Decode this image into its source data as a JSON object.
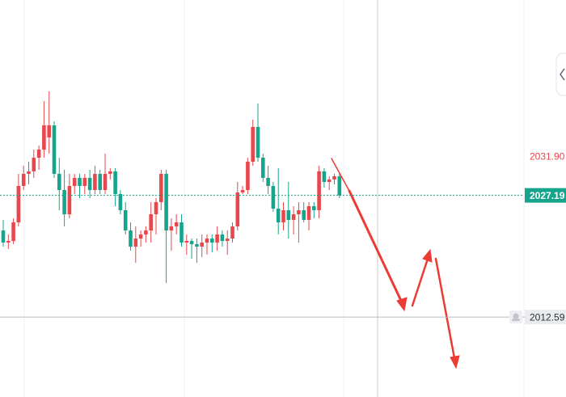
{
  "chart_data": {
    "type": "candlestick",
    "up_color": "#e8474c",
    "down_color": "#16a58c",
    "ylim": [
      2003.0,
      2050.63
    ],
    "open": [
      2022.98,
      2021.53,
      2021.72,
      2023.95,
      2028.32,
      2029.77,
      2030.07,
      2031.71,
      2032.68,
      2034.14,
      2035.59,
      2029.77,
      2027.83,
      2024.92,
      2028.32,
      2029.29,
      2028.32,
      2029.29,
      2027.83,
      2029.77,
      2027.83,
      2029.77,
      2030.07,
      2027.35,
      2025.41,
      2022.98,
      2021.04,
      2022.01,
      2022.5,
      2022.98,
      2024.92,
      2026.38,
      2029.77,
      2022.98,
      2023.47,
      2023.95,
      2021.53,
      2021.72,
      2021.34,
      2021.04,
      2021.53,
      2022.01,
      2021.53,
      2022.5,
      2021.72,
      2022.01,
      2023.47,
      2027.54,
      2027.83,
      2031.23,
      2035.4,
      2031.71,
      2029.29,
      2028.32,
      2025.6,
      2023.95,
      2025.41,
      2024.25,
      2024.92,
      2025.41,
      2024.25,
      2025.89,
      2025.41,
      2030.07,
      2028.8,
      2029.1,
      2029.48
    ],
    "high": [
      2024.25,
      2022.5,
      2024.44,
      2029.77,
      2030.74,
      2031.23,
      2032.68,
      2033.17,
      2038.5,
      2039.67,
      2036.08,
      2031.71,
      2030.26,
      2029.77,
      2029.77,
      2029.77,
      2029.77,
      2030.26,
      2030.74,
      2030.26,
      2032.2,
      2030.45,
      2030.45,
      2027.83,
      2026.38,
      2023.95,
      2023.47,
      2022.98,
      2023.47,
      2026.38,
      2026.86,
      2030.26,
      2030.26,
      2024.44,
      2024.92,
      2024.92,
      2022.5,
      2022.01,
      2022.01,
      2022.5,
      2022.5,
      2022.5,
      2023.47,
      2022.98,
      2022.98,
      2023.95,
      2028.8,
      2028.32,
      2031.71,
      2036.27,
      2038.21,
      2032.2,
      2030.74,
      2028.8,
      2030.45,
      2026.38,
      2028.8,
      2025.89,
      2026.38,
      2026.38,
      2026.38,
      2026.38,
      2030.74,
      2030.45,
      2029.48,
      2029.77,
      2029.77
    ],
    "low": [
      2021.04,
      2020.75,
      2021.34,
      2023.47,
      2027.83,
      2028.51,
      2029.29,
      2030.26,
      2031.71,
      2032.2,
      2029.29,
      2025.41,
      2023.47,
      2024.44,
      2027.35,
      2026.86,
      2027.35,
      2026.86,
      2027.35,
      2027.35,
      2027.35,
      2029.1,
      2025.89,
      2024.92,
      2022.5,
      2020.56,
      2019.1,
      2021.04,
      2021.53,
      2021.53,
      2022.5,
      2025.41,
      2016.68,
      2020.56,
      2022.5,
      2021.04,
      2020.07,
      2019.59,
      2019.1,
      2019.78,
      2020.07,
      2020.37,
      2020.56,
      2021.04,
      2020.07,
      2021.53,
      2022.98,
      2027.35,
      2027.35,
      2030.74,
      2031.23,
      2028.8,
      2027.35,
      2025.22,
      2022.5,
      2022.98,
      2022.01,
      2022.5,
      2021.53,
      2023.95,
      2022.98,
      2024.44,
      2024.44,
      2028.13,
      2027.83,
      2028.51,
      2026.86
    ],
    "close": [
      2021.53,
      2021.72,
      2023.95,
      2028.32,
      2029.77,
      2030.07,
      2031.71,
      2032.68,
      2035.59,
      2035.59,
      2029.77,
      2027.83,
      2024.92,
      2028.32,
      2029.29,
      2028.32,
      2029.29,
      2027.83,
      2029.77,
      2027.83,
      2029.77,
      2030.07,
      2027.35,
      2025.41,
      2022.98,
      2021.04,
      2022.01,
      2022.5,
      2022.98,
      2024.92,
      2026.38,
      2029.77,
      2022.98,
      2023.47,
      2023.95,
      2021.53,
      2021.72,
      2021.34,
      2021.04,
      2021.53,
      2022.01,
      2021.53,
      2022.5,
      2021.72,
      2022.01,
      2023.47,
      2027.54,
      2027.83,
      2031.23,
      2035.4,
      2031.71,
      2029.29,
      2028.32,
      2025.6,
      2023.95,
      2025.41,
      2024.25,
      2024.92,
      2025.41,
      2024.25,
      2025.89,
      2025.41,
      2030.07,
      2028.8,
      2029.1,
      2029.48,
      2027.19
    ],
    "price_labels": [
      {
        "value": 2031.9,
        "label": "2031.90",
        "color": "#e8474c",
        "boxed": false,
        "line": false
      },
      {
        "value": 2027.19,
        "label": "2027.19",
        "color": "#16a58c",
        "boxed": true,
        "line": true
      },
      {
        "value": 2012.59,
        "label": "2012.59",
        "color": "#e9ebef",
        "boxed": true,
        "line": true
      }
    ]
  }
}
